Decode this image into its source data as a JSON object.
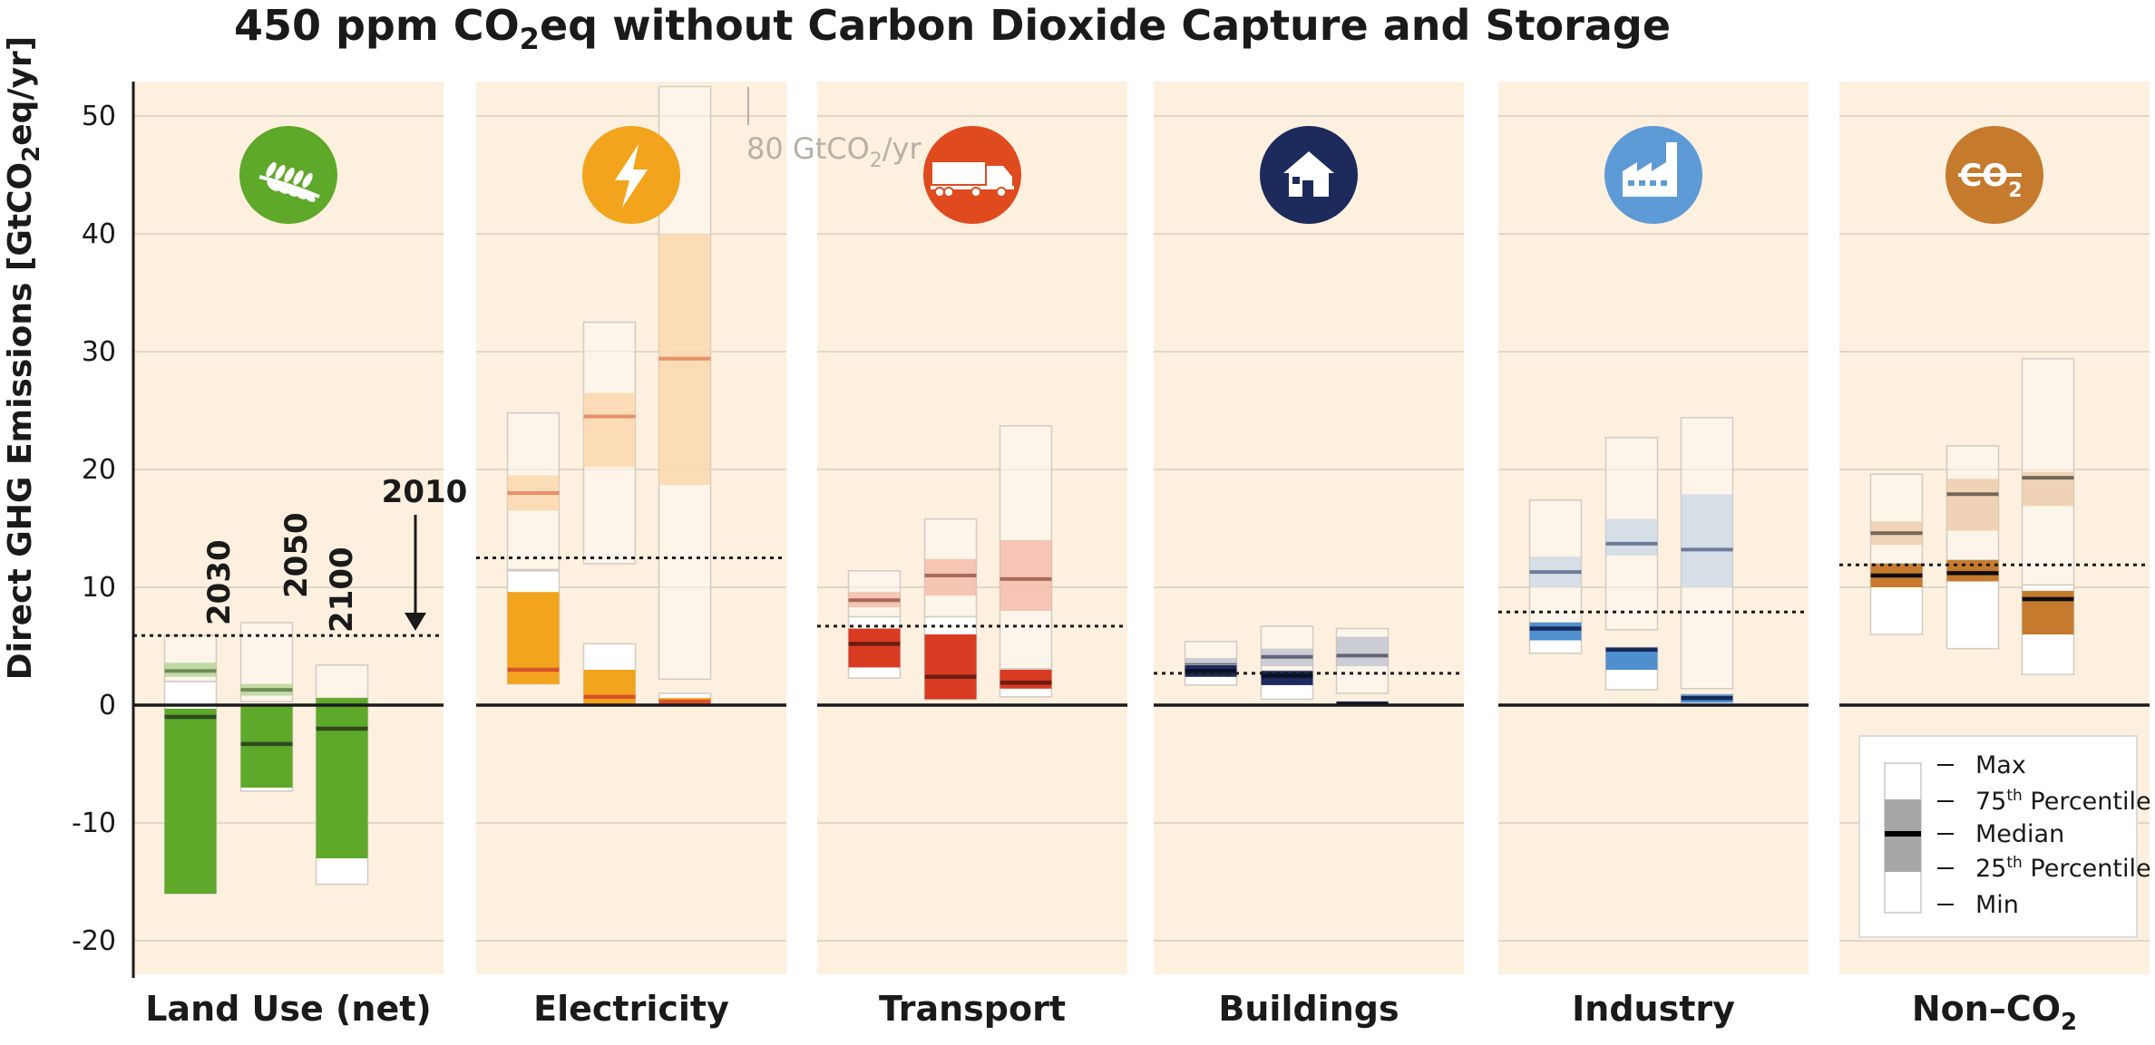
{
  "chart_data": {
    "type": "box",
    "title": {
      "pre": "450 ppm CO",
      "sub": "2",
      "post": "eq without Carbon Dioxide Capture and Storage"
    },
    "ylabel": {
      "pre": "Direct GHG Emissions [GtCO",
      "sub": "2",
      "post": "eq/yr]"
    },
    "ylim": [
      -23,
      53
    ],
    "yticks": [
      50,
      40,
      30,
      20,
      10,
      0,
      -10,
      -20
    ],
    "grid": true,
    "years": [
      "2030",
      "2050",
      "2100"
    ],
    "year_2010_label": "2010",
    "clip_note": {
      "pre": "80 GtCO",
      "sub": "2",
      "post": "/yr"
    },
    "clip_value": 80,
    "panels": [
      {
        "name": "Land Use (net)",
        "name_sub": "",
        "icon": "wheat-icon",
        "icon_color": "#5ea82a",
        "color_light": "#a9cf86",
        "color_dark": "#5ea82a",
        "median_color": "#2c4a1e",
        "baseline_2010": 5.9,
        "light_boxes": [
          {
            "min": 2.0,
            "q1": 2.4,
            "median": 2.9,
            "q3": 3.6,
            "max": 5.9
          },
          {
            "min": 0.3,
            "q1": 0.8,
            "median": 1.3,
            "q3": 1.8,
            "max": 7.0
          },
          {
            "min": 0.1,
            "q1": 0.2,
            "median": 0.4,
            "q3": 0.6,
            "max": 3.4
          }
        ],
        "dark_boxes": [
          {
            "min": -16.0,
            "q1": -16.0,
            "median": -1.0,
            "q3": -0.3,
            "max": 2.0
          },
          {
            "min": -7.3,
            "q1": -7.0,
            "median": -3.3,
            "q3": 0.0,
            "max": 0.0
          },
          {
            "min": -15.2,
            "q1": -13.0,
            "median": -2.0,
            "q3": 0.6,
            "max": 0.6
          }
        ]
      },
      {
        "name": "Electricity",
        "name_sub": "",
        "icon": "lightning-bolt-icon",
        "icon_color": "#f2a41c",
        "color_light": "#f9d1a0",
        "color_dark": "#f2a41c",
        "median_color": "#d9522a",
        "baseline_2010": 12.5,
        "light_boxes": [
          {
            "min": 11.5,
            "q1": 16.5,
            "median": 18.0,
            "q3": 19.5,
            "max": 24.8
          },
          {
            "min": 12.0,
            "q1": 20.2,
            "median": 24.5,
            "q3": 26.5,
            "max": 32.5
          },
          {
            "min": 2.2,
            "q1": 18.7,
            "median": 29.4,
            "q3": 40.0,
            "max": 80
          }
        ],
        "dark_boxes": [
          {
            "min": 1.8,
            "q1": 1.8,
            "median": 3.0,
            "q3": 9.6,
            "max": 11.4
          },
          {
            "min": 0.0,
            "q1": 0.0,
            "median": 0.7,
            "q3": 3.0,
            "max": 5.2
          },
          {
            "min": 0.0,
            "q1": 0.0,
            "median": 0.3,
            "q3": 0.6,
            "max": 1.0
          }
        ]
      },
      {
        "name": "Transport",
        "name_sub": "",
        "icon": "truck-icon",
        "icon_color": "#e04a1f",
        "color_light": "#f2b0a0",
        "color_dark": "#d93a22",
        "median_color": "#6b1c10",
        "baseline_2010": 6.7,
        "light_boxes": [
          {
            "min": 7.5,
            "q1": 8.3,
            "median": 8.9,
            "q3": 9.6,
            "max": 11.4
          },
          {
            "min": 7.5,
            "q1": 9.3,
            "median": 11.0,
            "q3": 12.4,
            "max": 15.8
          },
          {
            "min": 3.1,
            "q1": 8.0,
            "median": 10.7,
            "q3": 14.0,
            "max": 23.7
          }
        ],
        "dark_boxes": [
          {
            "min": 2.3,
            "q1": 3.2,
            "median": 5.2,
            "q3": 6.5,
            "max": 7.5
          },
          {
            "min": 0.5,
            "q1": 0.5,
            "median": 2.4,
            "q3": 6.0,
            "max": 7.5
          },
          {
            "min": 0.7,
            "q1": 1.4,
            "median": 1.9,
            "q3": 3.0,
            "max": 3.0
          }
        ]
      },
      {
        "name": "Buildings",
        "name_sub": "",
        "icon": "house-icon",
        "icon_color": "#1c2a5c",
        "color_light": "#b6bccb",
        "color_dark": "#1c2a5c",
        "median_color": "#0a1028",
        "baseline_2010": 2.7,
        "light_boxes": [
          {
            "min": 2.5,
            "q1": 3.0,
            "median": 3.4,
            "q3": 4.0,
            "max": 5.4
          },
          {
            "min": 2.5,
            "q1": 3.3,
            "median": 4.1,
            "q3": 4.8,
            "max": 6.7
          },
          {
            "min": 1.0,
            "q1": 3.3,
            "median": 4.2,
            "q3": 5.8,
            "max": 6.5
          }
        ],
        "dark_boxes": [
          {
            "min": 1.7,
            "q1": 2.4,
            "median": 2.9,
            "q3": 3.4,
            "max": 3.4
          },
          {
            "min": 0.5,
            "q1": 1.7,
            "median": 2.5,
            "q3": 2.9,
            "max": 2.9
          },
          {
            "min": 0.0,
            "q1": 0.0,
            "median": 0.1,
            "q3": 0.3,
            "max": 0.3
          }
        ]
      },
      {
        "name": "Industry",
        "name_sub": "",
        "icon": "factory-icon",
        "icon_color": "#5e9bd6",
        "color_light": "#c4d4e4",
        "color_dark": "#4f8fce",
        "median_color": "#162a5a",
        "baseline_2010": 7.9,
        "light_boxes": [
          {
            "min": 6.8,
            "q1": 10.0,
            "median": 11.3,
            "q3": 12.6,
            "max": 17.4
          },
          {
            "min": 6.4,
            "q1": 12.7,
            "median": 13.7,
            "q3": 15.8,
            "max": 22.7
          },
          {
            "min": 1.4,
            "q1": 10.0,
            "median": 13.2,
            "q3": 17.9,
            "max": 24.4
          }
        ],
        "dark_boxes": [
          {
            "min": 4.4,
            "q1": 5.5,
            "median": 6.5,
            "q3": 7.0,
            "max": 7.0
          },
          {
            "min": 1.3,
            "q1": 3.0,
            "median": 4.7,
            "q3": 4.9,
            "max": 4.9
          },
          {
            "min": 0.0,
            "q1": 0.2,
            "median": 0.6,
            "q3": 0.9,
            "max": 0.9
          }
        ]
      },
      {
        "name": "Non–CO",
        "name_sub": "2",
        "icon": "crossed-co2-icon",
        "icon_text": "CO",
        "icon_sub": "2",
        "icon_color": "#c57a2e",
        "color_light": "#e9c4a0",
        "color_dark": "#c57a2e",
        "median_color": "#0d0d0d",
        "baseline_2010": 11.9,
        "light_boxes": [
          {
            "min": 12.0,
            "q1": 13.6,
            "median": 14.6,
            "q3": 15.6,
            "max": 19.6
          },
          {
            "min": 12.3,
            "q1": 14.8,
            "median": 17.9,
            "q3": 19.2,
            "max": 22.0
          },
          {
            "min": 10.2,
            "q1": 16.9,
            "median": 19.3,
            "q3": 19.8,
            "max": 29.4
          }
        ],
        "dark_boxes": [
          {
            "min": 6.0,
            "q1": 10.0,
            "median": 11.0,
            "q3": 12.0,
            "max": 12.0
          },
          {
            "min": 4.8,
            "q1": 10.5,
            "median": 11.2,
            "q3": 12.3,
            "max": 12.3
          },
          {
            "min": 2.6,
            "q1": 6.0,
            "median": 9.0,
            "q3": 9.7,
            "max": 10.2
          }
        ]
      }
    ],
    "legend": {
      "items": [
        {
          "pre": "Max",
          "sup": "",
          "post": ""
        },
        {
          "pre": "75",
          "sup": "th",
          "post": " Percentile"
        },
        {
          "pre": "Median",
          "sup": "",
          "post": ""
        },
        {
          "pre": "25",
          "sup": "th",
          "post": " Percentile"
        },
        {
          "pre": "Min",
          "sup": "",
          "post": ""
        }
      ],
      "placement": "bottom-right"
    },
    "colors": {
      "panel_background": "#fdf0df",
      "grid": "#cfc8bd",
      "axis": "#1a1a1a",
      "frame": "#d2cbc2"
    }
  }
}
